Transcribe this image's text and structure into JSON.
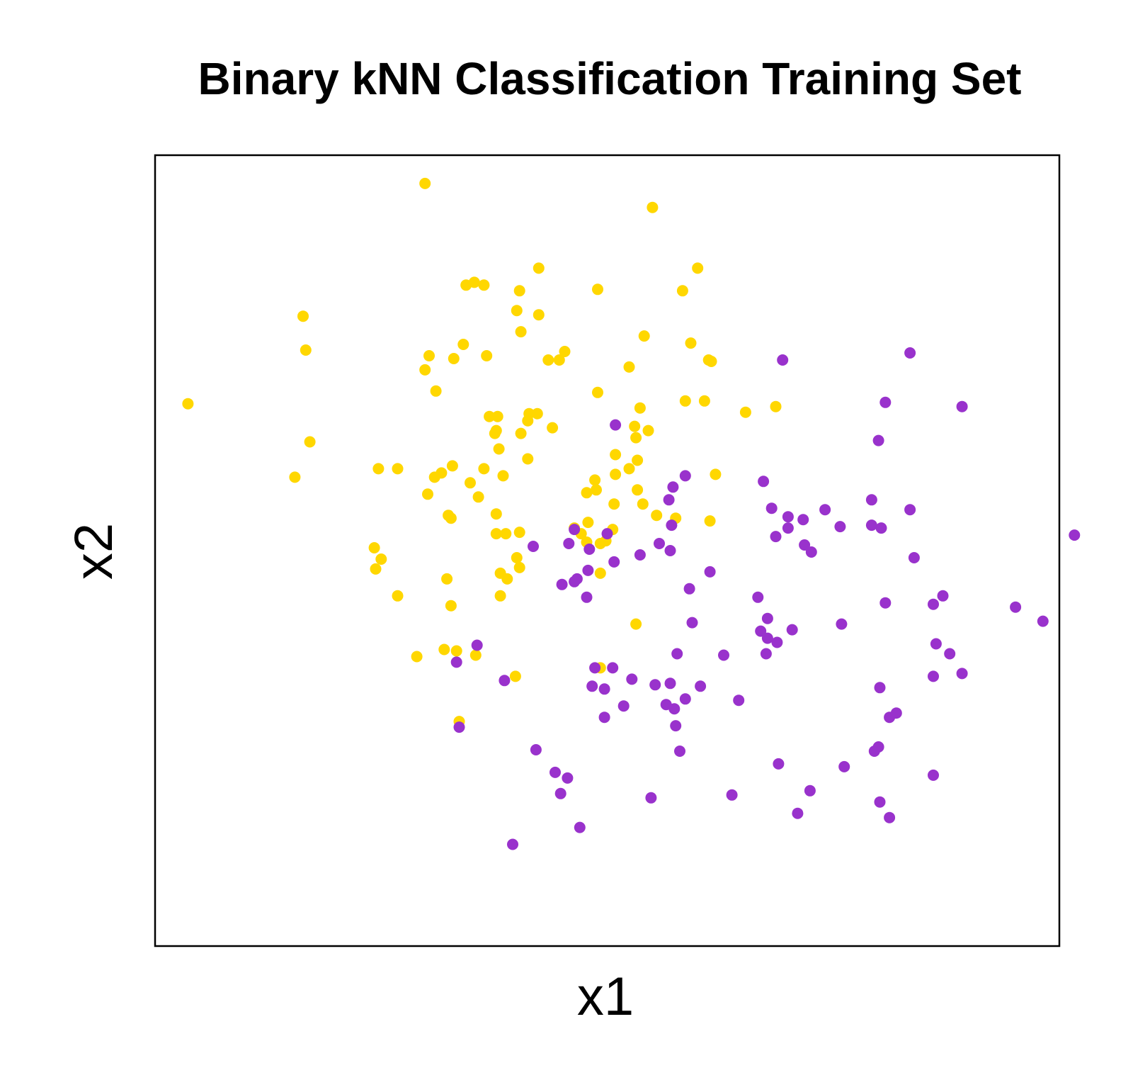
{
  "chart_data": {
    "type": "scatter",
    "title": "Binary kNN Classification Training Set",
    "xlabel": "x1",
    "ylabel": "x2",
    "xlim": [
      -3.3,
      3.3
    ],
    "ylim": [
      -2.8,
      2.8
    ],
    "xticks": [],
    "yticks": [],
    "grid": false,
    "legend": "none",
    "colors": {
      "class_yellow": "#FFD700",
      "class_purple": "#9932CC",
      "frame": "#000000"
    },
    "series": [
      {
        "color": "#FFD700",
        "points": [
          [
            -1.33,
            2.6
          ],
          [
            0.33,
            2.43
          ],
          [
            -3.06,
            1.04
          ],
          [
            -2.22,
            1.66
          ],
          [
            -2.2,
            1.42
          ],
          [
            -2.28,
            0.52
          ],
          [
            -2.17,
            0.77
          ],
          [
            -1.67,
            0.58
          ],
          [
            -1.53,
            0.58
          ],
          [
            -1.7,
            0.02
          ],
          [
            -1.69,
            -0.13
          ],
          [
            -1.65,
            -0.06
          ],
          [
            -1.53,
            -0.32
          ],
          [
            -1.39,
            -0.75
          ],
          [
            -1.3,
            1.38
          ],
          [
            -1.33,
            1.28
          ],
          [
            -1.25,
            1.13
          ],
          [
            -1.26,
            0.52
          ],
          [
            -1.31,
            0.4
          ],
          [
            -1.21,
            0.55
          ],
          [
            -1.13,
            0.6
          ],
          [
            -1.16,
            0.25
          ],
          [
            -1.14,
            0.23
          ],
          [
            -1.17,
            -0.2
          ],
          [
            -1.14,
            -0.39
          ],
          [
            -1.19,
            -0.7
          ],
          [
            -1.03,
            1.88
          ],
          [
            -0.97,
            1.9
          ],
          [
            -0.9,
            1.88
          ],
          [
            -1.05,
            1.46
          ],
          [
            -1.12,
            1.36
          ],
          [
            -1.0,
            0.48
          ],
          [
            -0.94,
            0.38
          ],
          [
            -0.9,
            0.58
          ],
          [
            -0.88,
            1.38
          ],
          [
            -0.86,
            0.95
          ],
          [
            -0.81,
            0.85
          ],
          [
            -0.8,
            0.95
          ],
          [
            -0.82,
            0.83
          ],
          [
            -0.79,
            0.72
          ],
          [
            -0.76,
            0.53
          ],
          [
            -0.81,
            0.26
          ],
          [
            -0.81,
            0.12
          ],
          [
            -0.74,
            0.12
          ],
          [
            -0.78,
            -0.16
          ],
          [
            -0.73,
            -0.2
          ],
          [
            -0.78,
            -0.32
          ],
          [
            -0.64,
            1.84
          ],
          [
            -0.66,
            1.7
          ],
          [
            -0.63,
            1.55
          ],
          [
            -0.58,
            0.92
          ],
          [
            -0.57,
            0.97
          ],
          [
            -0.51,
            0.97
          ],
          [
            -0.63,
            0.83
          ],
          [
            -0.58,
            0.65
          ],
          [
            -0.64,
            0.13
          ],
          [
            -0.66,
            -0.05
          ],
          [
            -0.64,
            -0.12
          ],
          [
            -0.96,
            -0.74
          ],
          [
            -1.1,
            -0.71
          ],
          [
            -0.5,
            2.0
          ],
          [
            -0.5,
            1.67
          ],
          [
            -0.43,
            1.35
          ],
          [
            -0.4,
            0.87
          ],
          [
            -0.35,
            1.35
          ],
          [
            -0.31,
            1.41
          ],
          [
            -0.24,
            0.16
          ],
          [
            -0.19,
            0.12
          ],
          [
            -0.15,
            0.06
          ],
          [
            -0.14,
            0.2
          ],
          [
            -0.67,
            -0.89
          ],
          [
            -0.07,
            1.85
          ],
          [
            -0.07,
            1.12
          ],
          [
            -0.09,
            0.5
          ],
          [
            -0.15,
            0.41
          ],
          [
            -0.08,
            0.43
          ],
          [
            -0.05,
            0.05
          ],
          [
            -0.05,
            -0.16
          ],
          [
            -0.05,
            -0.83
          ],
          [
            0.04,
            0.15
          ],
          [
            0.05,
            0.33
          ],
          [
            0.06,
            0.68
          ],
          [
            0.16,
            1.3
          ],
          [
            0.2,
            0.88
          ],
          [
            0.16,
            0.58
          ],
          [
            0.21,
            0.8
          ],
          [
            0.26,
            0.33
          ],
          [
            0.22,
            0.64
          ],
          [
            0.21,
            -0.52
          ],
          [
            0.24,
            1.01
          ],
          [
            0.27,
            1.52
          ],
          [
            0.3,
            0.85
          ],
          [
            0.36,
            0.25
          ],
          [
            0.06,
            0.54
          ],
          [
            0.61,
            1.47
          ],
          [
            0.55,
            1.84
          ],
          [
            0.57,
            1.06
          ],
          [
            0.5,
            0.23
          ],
          [
            0.66,
            2.0
          ],
          [
            0.74,
            1.35
          ],
          [
            0.76,
            1.34
          ],
          [
            0.71,
            1.06
          ],
          [
            0.79,
            0.54
          ],
          [
            0.75,
            0.21
          ],
          [
            1.01,
            0.98
          ],
          [
            1.23,
            1.02
          ],
          [
            -1.08,
            -1.21
          ],
          [
            0.22,
            0.43
          ],
          [
            -0.01,
            0.07
          ]
        ]
      },
      {
        "color": "#9932CC",
        "points": [
          [
            -0.69,
            -2.08
          ],
          [
            -1.08,
            -1.25
          ],
          [
            -0.95,
            -0.67
          ],
          [
            -1.1,
            -0.79
          ],
          [
            -0.75,
            -0.92
          ],
          [
            -0.54,
            0.03
          ],
          [
            -0.52,
            -1.41
          ],
          [
            -0.33,
            -0.24
          ],
          [
            -0.38,
            -1.57
          ],
          [
            -0.34,
            -1.72
          ],
          [
            -0.24,
            0.15
          ],
          [
            -0.24,
            -0.22
          ],
          [
            -0.28,
            0.05
          ],
          [
            -0.22,
            -0.2
          ],
          [
            -0.29,
            -1.61
          ],
          [
            -0.2,
            -1.96
          ],
          [
            -0.09,
            -0.83
          ],
          [
            -0.11,
            -0.96
          ],
          [
            -0.14,
            -0.14
          ],
          [
            -0.13,
            0.01
          ],
          [
            -0.15,
            -0.33
          ],
          [
            0.06,
            0.89
          ],
          [
            0.0,
            0.12
          ],
          [
            0.04,
            -0.83
          ],
          [
            -0.02,
            -0.98
          ],
          [
            -0.02,
            -1.18
          ],
          [
            0.05,
            -0.08
          ],
          [
            0.12,
            -1.1
          ],
          [
            0.18,
            -0.91
          ],
          [
            0.24,
            -0.03
          ],
          [
            0.35,
            -0.95
          ],
          [
            0.32,
            -1.75
          ],
          [
            0.48,
            0.45
          ],
          [
            0.45,
            0.36
          ],
          [
            0.57,
            0.53
          ],
          [
            0.47,
            0.18
          ],
          [
            0.46,
            0.0
          ],
          [
            0.43,
            -1.09
          ],
          [
            0.46,
            -0.94
          ],
          [
            0.51,
            -0.73
          ],
          [
            0.6,
            -0.27
          ],
          [
            0.62,
            -0.51
          ],
          [
            0.57,
            -1.05
          ],
          [
            0.49,
            -1.12
          ],
          [
            0.5,
            -1.24
          ],
          [
            0.53,
            -1.42
          ],
          [
            0.68,
            -0.96
          ],
          [
            0.75,
            -0.15
          ],
          [
            0.85,
            -0.74
          ],
          [
            0.91,
            -1.73
          ],
          [
            0.96,
            -1.06
          ],
          [
            1.1,
            -0.33
          ],
          [
            1.12,
            -0.57
          ],
          [
            1.14,
            0.49
          ],
          [
            1.16,
            -0.73
          ],
          [
            1.17,
            -0.48
          ],
          [
            1.17,
            -0.62
          ],
          [
            1.2,
            0.3
          ],
          [
            1.23,
            0.1
          ],
          [
            1.24,
            -0.65
          ],
          [
            1.25,
            -1.51
          ],
          [
            1.35,
            -0.56
          ],
          [
            1.28,
            1.35
          ],
          [
            1.39,
            -1.86
          ],
          [
            1.32,
            0.24
          ],
          [
            1.32,
            0.16
          ],
          [
            1.43,
            0.22
          ],
          [
            1.48,
            -1.7
          ],
          [
            1.49,
            -0.01
          ],
          [
            1.7,
            0.17
          ],
          [
            1.71,
            -0.52
          ],
          [
            1.59,
            0.29
          ],
          [
            1.93,
            0.36
          ],
          [
            2.03,
            -0.37
          ],
          [
            1.99,
            -0.97
          ],
          [
            1.95,
            -1.42
          ],
          [
            1.98,
            -1.39
          ],
          [
            2.03,
            1.05
          ],
          [
            1.98,
            0.78
          ],
          [
            2.0,
            0.16
          ],
          [
            1.99,
            -1.78
          ],
          [
            1.73,
            -1.53
          ],
          [
            2.06,
            -1.89
          ],
          [
            2.06,
            -1.18
          ],
          [
            2.11,
            -1.15
          ],
          [
            2.21,
            1.4
          ],
          [
            2.21,
            0.29
          ],
          [
            1.93,
            0.18
          ],
          [
            2.24,
            -0.05
          ],
          [
            2.38,
            -1.59
          ],
          [
            2.38,
            -0.38
          ],
          [
            2.4,
            -0.66
          ],
          [
            2.38,
            -0.89
          ],
          [
            2.45,
            -0.32
          ],
          [
            2.5,
            -0.73
          ],
          [
            2.59,
            -0.87
          ],
          [
            2.59,
            1.02
          ],
          [
            2.98,
            -0.4
          ],
          [
            3.18,
            -0.5
          ],
          [
            3.41,
            0.11
          ],
          [
            0.38,
            0.05
          ],
          [
            1.44,
            0.04
          ]
        ]
      }
    ]
  }
}
